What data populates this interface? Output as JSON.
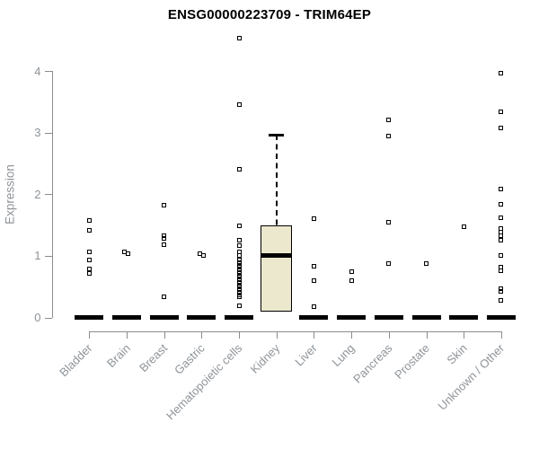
{
  "chart_data": {
    "type": "boxplot",
    "title": "ENSG00000223709 - TRIM64EP",
    "ylabel": "Expression",
    "xlabel": "",
    "yticks": [
      0,
      1,
      2,
      3,
      4
    ],
    "ylim": [
      0,
      4.6
    ],
    "grid": false,
    "marker": "open-square",
    "colors": {
      "box_fill": "#ece8ce",
      "box_border": "#000000",
      "axis": "#8c8c8c",
      "label_text": "#8e9499",
      "title_text": "#000000",
      "point": "#000000"
    },
    "categories": [
      {
        "label": "Bladder",
        "collapsed_median": 0,
        "points": [
          1.57,
          1.42,
          1.07,
          0.94,
          0.78,
          0.72
        ]
      },
      {
        "label": "Brain",
        "collapsed_median": 0,
        "points": [
          1.07,
          1.04
        ],
        "point_dx": [
          -2,
          2
        ]
      },
      {
        "label": "Breast",
        "collapsed_median": 0,
        "points": [
          1.82,
          1.33,
          1.29,
          1.18,
          0.33
        ]
      },
      {
        "label": "Gastric",
        "collapsed_median": 0,
        "points": [
          1.03,
          1.0
        ],
        "point_dx": [
          -2,
          2
        ]
      },
      {
        "label": "Hematopoietic cells",
        "collapsed_median": 0,
        "points": [
          4.54,
          3.46,
          2.4,
          1.49,
          1.25,
          1.17,
          1.06,
          1.0,
          0.93,
          0.89,
          0.85,
          0.81,
          0.77,
          0.73,
          0.69,
          0.65,
          0.61,
          0.57,
          0.53,
          0.49,
          0.45,
          0.41,
          0.37,
          0.33,
          0.19
        ]
      },
      {
        "label": "Kidney",
        "box": {
          "q1": 0.1,
          "median": 1.0,
          "q3": 1.49,
          "whisker_high": 2.96
        },
        "points": []
      },
      {
        "label": "Liver",
        "collapsed_median": 0,
        "points": [
          1.61,
          0.83,
          0.6,
          0.18
        ]
      },
      {
        "label": "Lung",
        "collapsed_median": 0,
        "points": [
          0.75,
          0.6
        ]
      },
      {
        "label": "Pancreas",
        "collapsed_median": 0,
        "points": [
          3.21,
          2.95,
          1.54,
          0.87
        ]
      },
      {
        "label": "Prostate",
        "collapsed_median": 0,
        "points": [
          0.88
        ]
      },
      {
        "label": "Skin",
        "collapsed_median": 0,
        "points": [
          1.47
        ]
      },
      {
        "label": "Unknown / Other",
        "collapsed_median": 0,
        "points": [
          3.97,
          3.34,
          3.08,
          2.08,
          1.84,
          1.62,
          1.44,
          1.38,
          1.32,
          1.26,
          1.0,
          0.82,
          0.76,
          0.47,
          0.43,
          0.28
        ]
      }
    ]
  }
}
